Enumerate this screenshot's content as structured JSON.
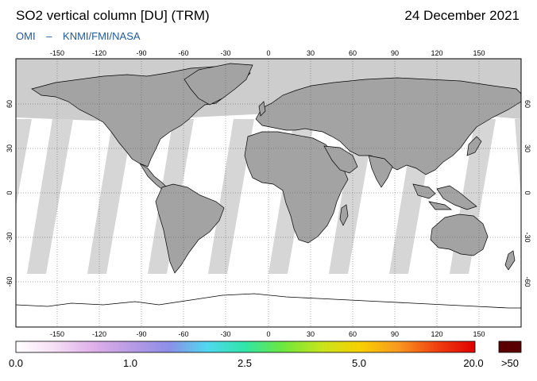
{
  "header": {
    "title": "SO2 vertical column [DU] (TRM)",
    "date": "24 December 2021",
    "credit_instrument": "OMI",
    "credit_dash": "–",
    "credit_agencies": "KNMI/FMI/NASA"
  },
  "map": {
    "lon_ticks": [
      "-150",
      "-120",
      "-90",
      "-60",
      "-30",
      "0",
      "30",
      "60",
      "90",
      "120",
      "150"
    ],
    "lat_ticks_left": [
      "60",
      "30",
      "0",
      "-30",
      "-60"
    ],
    "lat_ticks_right": [
      "60",
      "30",
      "0",
      "-30",
      "-60"
    ],
    "colors": {
      "land": "#a3a3a3",
      "polar_night": "#cdcdcd",
      "swath_gap": "#d6d6d6",
      "data_bg": "#ffffff",
      "coast": "#000000"
    }
  },
  "colorbar": {
    "labels": [
      "0.0",
      "1.0",
      "2.5",
      "5.0",
      "20.0"
    ],
    "overflow_label": ">50",
    "gradient": [
      "#ffffff",
      "#f5dff5",
      "#e0b0ea",
      "#b89be5",
      "#8d8ee8",
      "#4fd8f0",
      "#30e6a6",
      "#6ee83c",
      "#c8e41c",
      "#f8d000",
      "#f89820",
      "#f04010",
      "#e00000"
    ],
    "overflow_color": "#5a0000"
  }
}
